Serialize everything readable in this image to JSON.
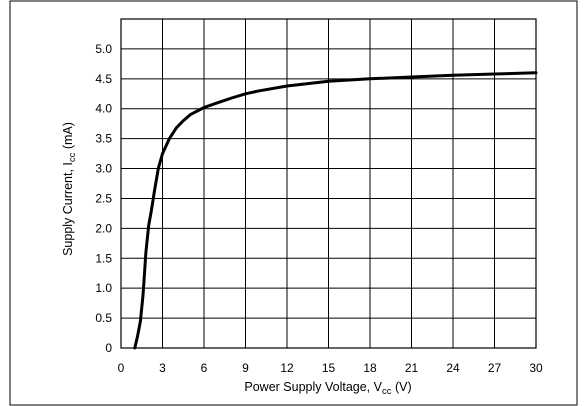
{
  "chart_data": {
    "type": "line",
    "title": "",
    "xlabel": {
      "main": "Power Supply Voltage, V",
      "sub": "cc",
      "unit": " (V)"
    },
    "ylabel": {
      "main": "Supply Current, I",
      "sub": "cc",
      "unit": " (mA)"
    },
    "xlim": [
      0,
      30
    ],
    "ylim": [
      0,
      5.5
    ],
    "xticks": [
      0,
      3,
      6,
      9,
      12,
      15,
      18,
      21,
      24,
      27,
      30
    ],
    "xtick_labels": [
      "0",
      "3",
      "6",
      "9",
      "12",
      "15",
      "18",
      "21",
      "24",
      "27",
      "30"
    ],
    "yticks": [
      0,
      0.5,
      1.0,
      1.5,
      2.0,
      2.5,
      3.0,
      3.5,
      4.0,
      4.5,
      5.0
    ],
    "ytick_labels": [
      "0",
      "0.5",
      "1.0",
      "1.5",
      "2.0",
      "2.5",
      "3.0",
      "3.5",
      "4.0",
      "4.5",
      "5.0"
    ],
    "grid": true,
    "series": [
      {
        "x": [
          1.0,
          1.2,
          1.4,
          1.6,
          1.8,
          2.0,
          2.2,
          2.4,
          2.7,
          3.0,
          3.5,
          4.0,
          4.5,
          5.0,
          6.0,
          7.0,
          8.0,
          9.0,
          10.0,
          12.0,
          15.0,
          18.0,
          21.0,
          24.0,
          27.0,
          30.0
        ],
        "y": [
          0.0,
          0.2,
          0.45,
          0.9,
          1.6,
          2.05,
          2.3,
          2.6,
          3.0,
          3.25,
          3.5,
          3.68,
          3.8,
          3.9,
          4.02,
          4.1,
          4.18,
          4.25,
          4.3,
          4.38,
          4.46,
          4.5,
          4.53,
          4.56,
          4.58,
          4.6
        ]
      }
    ]
  }
}
